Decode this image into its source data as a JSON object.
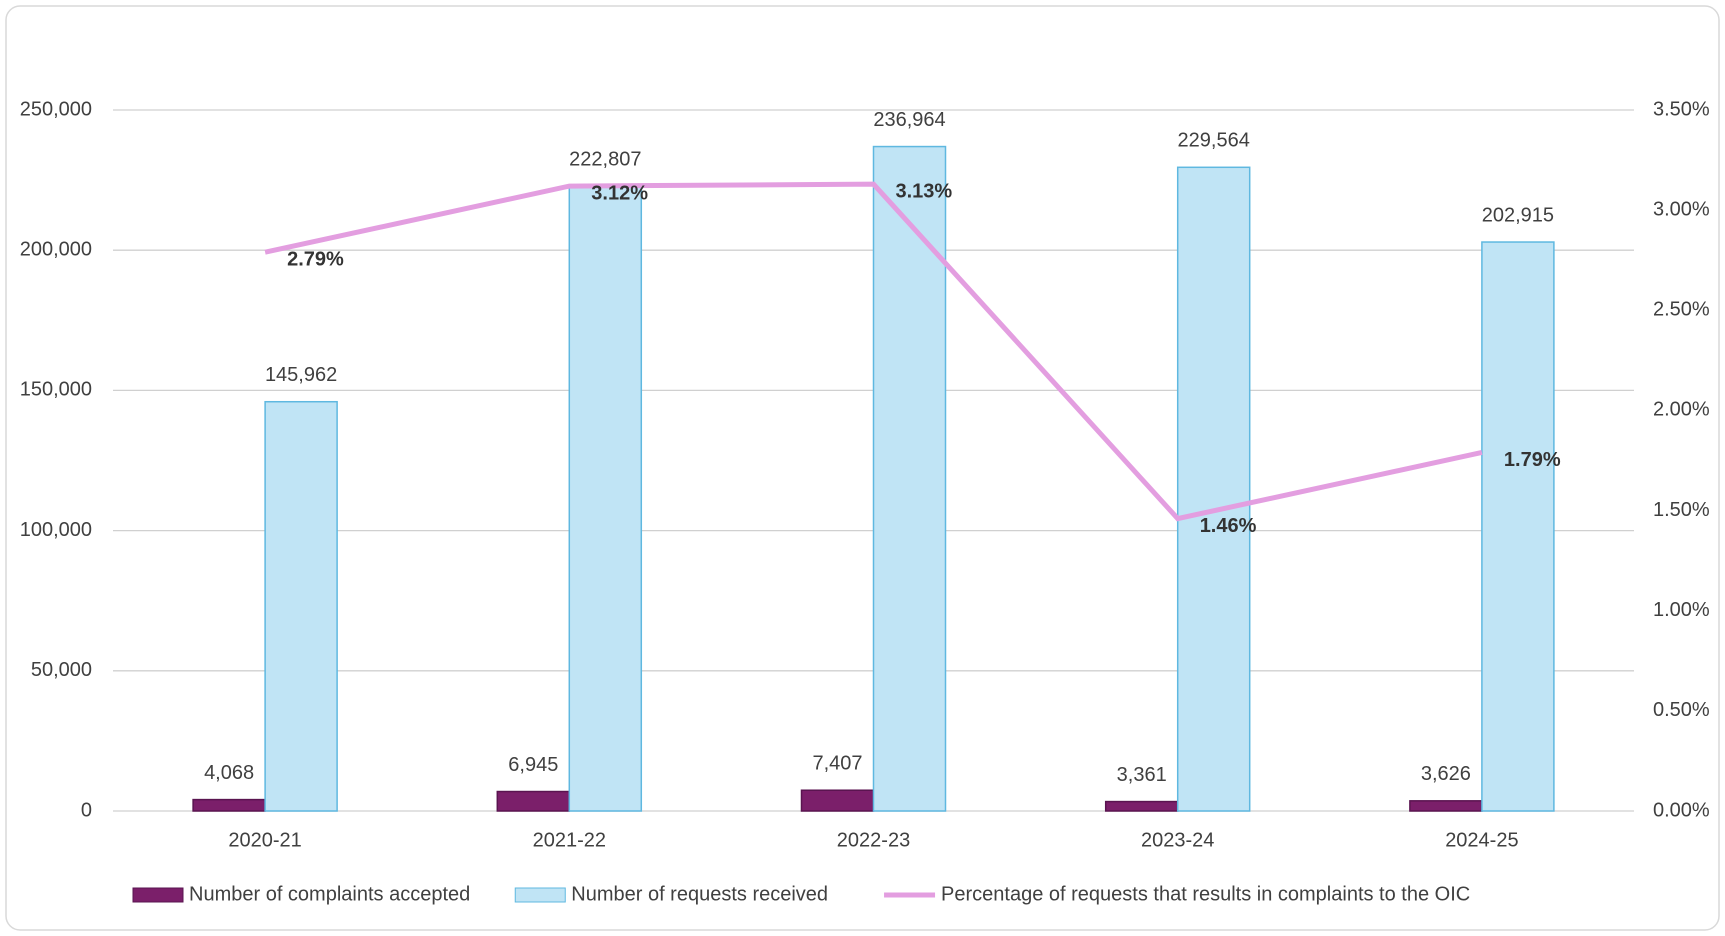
{
  "chart_data": {
    "type": "bar",
    "categories": [
      "2020-21",
      "2021-22",
      "2022-23",
      "2023-24",
      "2024-25"
    ],
    "series": [
      {
        "name": "Number of complaints accepted",
        "type": "bar",
        "color": "#7b1f6a",
        "values": [
          4068,
          6945,
          7407,
          3361,
          3626
        ],
        "value_labels": [
          "4,068",
          "6,945",
          "7,407",
          "3,361",
          "3,626"
        ]
      },
      {
        "name": "Number of requests received",
        "type": "bar",
        "color": "#c0e4f5",
        "values": [
          145962,
          222807,
          236964,
          229564,
          202915
        ],
        "value_labels": [
          "145,962",
          "222,807",
          "236,964",
          "229,564",
          "202,915"
        ]
      },
      {
        "name": "Percentage of requests that results in complaints to the OIC",
        "type": "line",
        "axis": "y2",
        "color": "#e39ee0",
        "values": [
          2.79,
          3.12,
          3.13,
          1.46,
          1.79
        ],
        "value_labels": [
          "2.79%",
          "3.12%",
          "3.13%",
          "1.46%",
          "1.79%"
        ]
      }
    ],
    "ylim": [
      0,
      250000
    ],
    "yticks": [
      0,
      {
        "value": 50000,
        "label": "50,000"
      },
      {
        "value": 100000,
        "label": "100,000"
      },
      {
        "value": 150000,
        "label": "150,000"
      },
      {
        "value": 200000,
        "label": "200,000"
      },
      {
        "value": 250000,
        "label": "250,000"
      }
    ],
    "y2lim": [
      0,
      3.5
    ],
    "y2ticks": [
      {
        "value": 0,
        "label": "0.00%"
      },
      {
        "value": 0.5,
        "label": "0.50%"
      },
      {
        "value": 1,
        "label": "1.00%"
      },
      {
        "value": 1.5,
        "label": "1.50%"
      },
      {
        "value": 2,
        "label": "2.00%"
      },
      {
        "value": 2.5,
        "label": "2.50%"
      },
      {
        "value": 3,
        "label": "3.00%"
      },
      {
        "value": 3.5,
        "label": "3.50%"
      }
    ],
    "grid": true,
    "legend": "bottom"
  }
}
